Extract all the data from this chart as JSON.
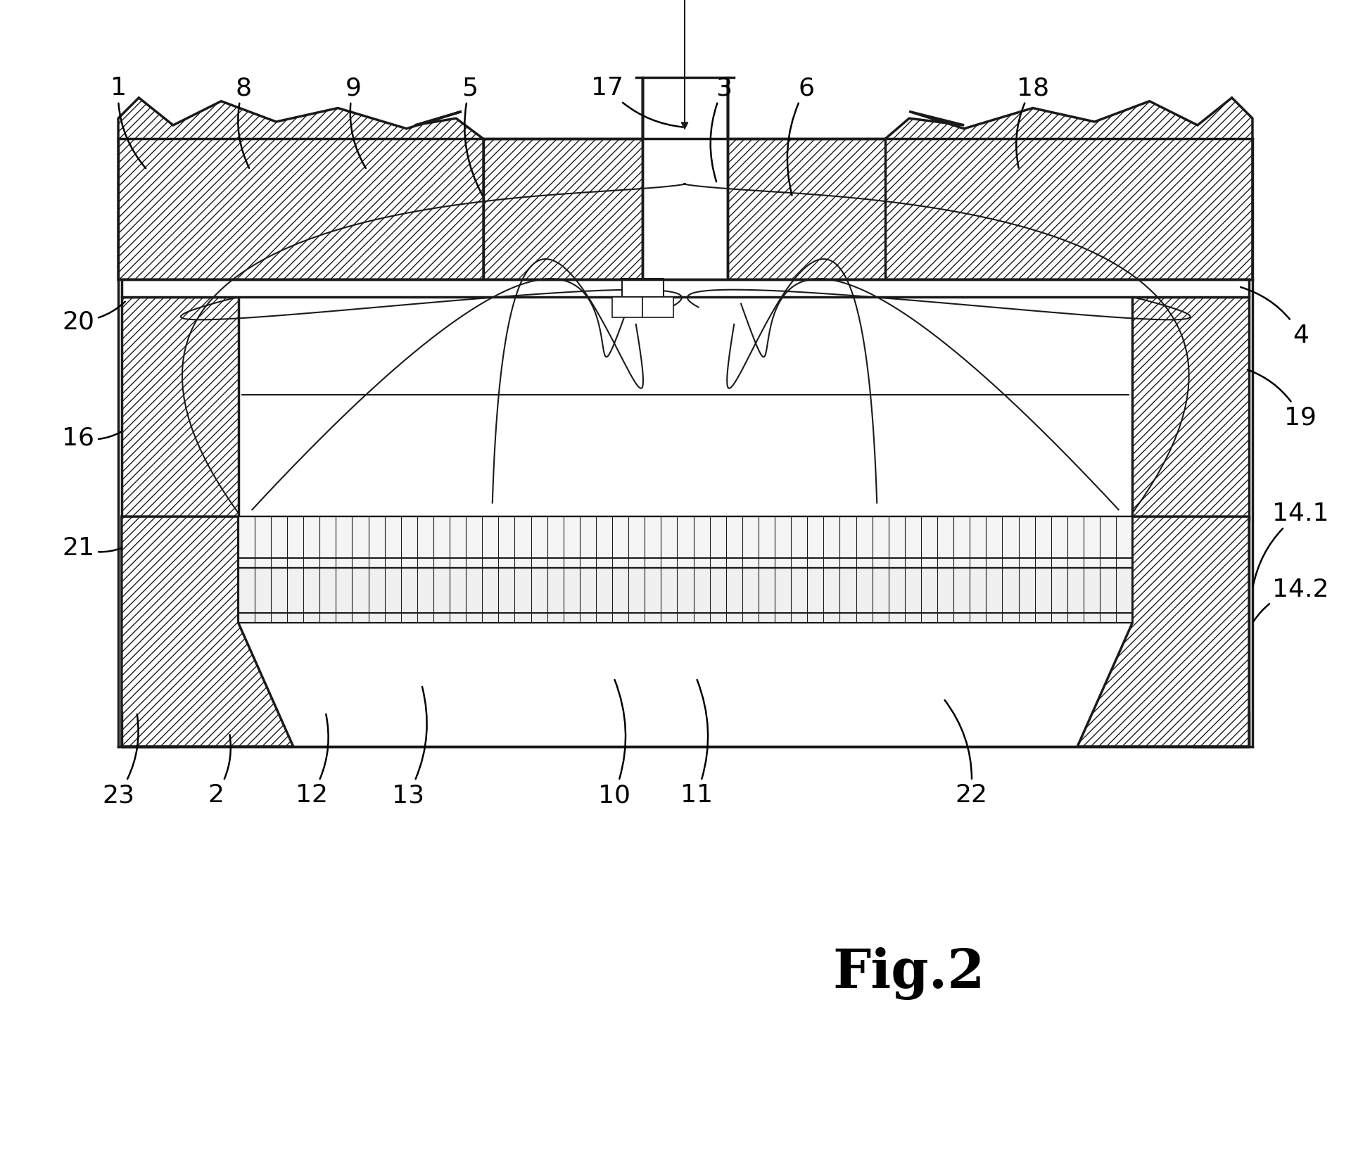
{
  "title": "Fig.2",
  "bg_color": "#ffffff",
  "line_color": "#1a1a1a",
  "fig_width": 19.47,
  "fig_height": 16.58
}
